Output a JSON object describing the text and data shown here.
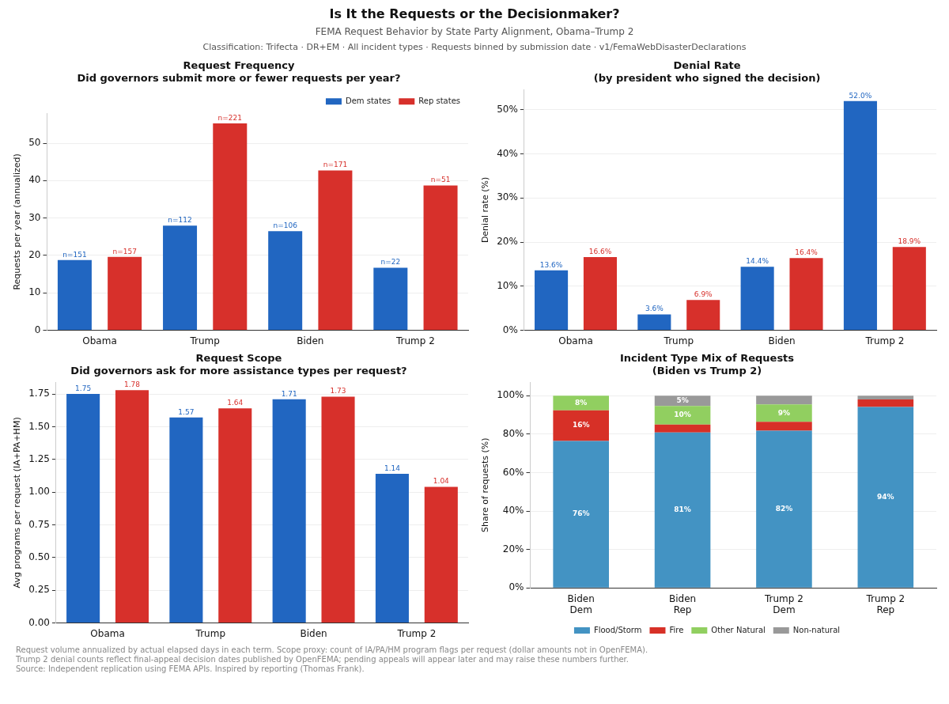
{
  "chart_data": [
    {
      "type": "other",
      "title": "Is It the Requests or the Decisionmaker?",
      "subtitle": "FEMA Request Behavior by State Party Alignment, Obama–Trump 2",
      "annotations": [
        "Classification: Trifecta · DR+EM · All incident types · Requests binned by submission date · v1/FemaWebDisasterDeclarations"
      ]
    },
    {
      "type": "bar",
      "title": "Request Frequency\nDid governors submit more or fewer requests per year?",
      "annotations": [
        "n=151",
        "n=112",
        "n=106",
        "n=22",
        "n=157",
        "n=221",
        "n=171",
        "n=51"
      ],
      "ylabel": "Requests per year (annualized)",
      "categories": [
        "Obama",
        "Trump",
        "Biden",
        "Trump 2"
      ],
      "series": [
        {
          "name": "Dem states",
          "color": "#2166c1",
          "values": [
            18.8,
            28.0,
            26.5,
            16.7
          ]
        },
        {
          "name": "Rep states",
          "color": "#d7302b",
          "values": [
            19.6,
            55.3,
            42.7,
            38.7
          ]
        }
      ],
      "ylim": [
        0,
        58
      ],
      "yticks": [
        0,
        10,
        20,
        30,
        40,
        50
      ],
      "grid": "y",
      "legend": "top right"
    },
    {
      "type": "bar",
      "title": "Denial Rate\n(by president who signed the decision)",
      "ylabel": "Denial rate (%)",
      "categories": [
        "Obama",
        "Trump",
        "Biden",
        "Trump 2"
      ],
      "series": [
        {
          "color": "#2166c1",
          "values": [
            13.6,
            3.6,
            14.4,
            52.0
          ],
          "value_labels": [
            "13.6%",
            "3.6%",
            "14.4%",
            "52.0%"
          ]
        },
        {
          "color": "#d7302b",
          "values": [
            16.6,
            6.9,
            16.4,
            18.9
          ],
          "value_labels": [
            "16.6%",
            "6.9%",
            "16.4%",
            "18.9%"
          ]
        }
      ],
      "ylim": [
        0,
        54.6
      ],
      "yticks": [
        {
          "value": 0,
          "label": "0%"
        },
        {
          "value": 10,
          "label": "10%"
        },
        {
          "value": 20,
          "label": "20%"
        },
        {
          "value": 30,
          "label": "30%"
        },
        {
          "value": 40,
          "label": "40%"
        },
        {
          "value": 50,
          "label": "50%"
        }
      ],
      "grid": "y"
    },
    {
      "type": "bar",
      "title": "Request Scope\nDid governors ask for more assistance types per request?",
      "ylabel": "Avg programs per request (IA+PA+HM)",
      "categories": [
        "Obama",
        "Trump",
        "Biden",
        "Trump 2"
      ],
      "series": [
        {
          "color": "#2166c1",
          "values": [
            1.75,
            1.57,
            1.71,
            1.14
          ],
          "value_labels": [
            "1.75",
            "1.57",
            "1.71",
            "1.14"
          ]
        },
        {
          "color": "#d7302b",
          "values": [
            1.78,
            1.64,
            1.73,
            1.04
          ],
          "value_labels": [
            "1.78",
            "1.64",
            "1.73",
            "1.04"
          ]
        }
      ],
      "ylim": [
        0,
        1.84
      ],
      "yticks": [
        {
          "value": 0,
          "label": "0.00"
        },
        {
          "value": 0.25,
          "label": "0.25"
        },
        {
          "value": 0.5,
          "label": "0.50"
        },
        {
          "value": 0.75,
          "label": "0.75"
        },
        {
          "value": 1,
          "label": "1.00"
        },
        {
          "value": 1.25,
          "label": "1.25"
        },
        {
          "value": 1.5,
          "label": "1.50"
        },
        {
          "value": 1.75,
          "label": "1.75"
        }
      ],
      "grid": "y"
    },
    {
      "type": "bar",
      "title": "Incident Type Mix of Requests\n(Biden vs Trump 2)",
      "ylabel": "Share of requests (%)",
      "categories": [
        "Biden\nDem",
        "Biden\nRep",
        "Trump 2\nDem",
        "Trump 2\nRep"
      ],
      "stacked": true,
      "series": [
        {
          "name": "Flood/Storm",
          "color": "#4393c3",
          "values": [
            76.4,
            80.8,
            81.8,
            94.1
          ],
          "value_labels": [
            "76%",
            "81%",
            "82%",
            "94%"
          ]
        },
        {
          "name": "Fire",
          "color": "#d73027",
          "values": [
            16.0,
            4.2,
            4.6,
            3.9
          ],
          "value_labels": [
            "16%",
            null,
            null,
            null
          ]
        },
        {
          "name": "Other Natural",
          "color": "#91cf60",
          "values": [
            7.6,
            9.6,
            9.1,
            0
          ],
          "value_labels": [
            "8%",
            "10%",
            "9%",
            null
          ]
        },
        {
          "name": "Non-natural",
          "color": "#999999",
          "values": [
            0,
            5.4,
            4.5,
            2.0
          ],
          "value_labels": [
            null,
            "5%",
            null,
            null
          ]
        }
      ],
      "ylim": [
        0,
        107
      ],
      "yticks": [
        {
          "value": 0,
          "label": "0%"
        },
        {
          "value": 20,
          "label": "20%"
        },
        {
          "value": 40,
          "label": "40%"
        },
        {
          "value": 60,
          "label": "60%"
        },
        {
          "value": 80,
          "label": "80%"
        },
        {
          "value": 100,
          "label": "100%"
        }
      ],
      "grid": "y",
      "legend": "bottom"
    },
    {
      "type": "other",
      "annotations": [
        "Request volume annualized by actual elapsed days in each term. Scope proxy: count of IA/PA/HM program flags per request (dollar amounts not in OpenFEMA).",
        "Trump 2 denial counts reflect final-appeal decision dates published by OpenFEMA; pending appeals will appear later and may raise these numbers further.",
        "Source: Independent replication using FEMA APIs. Inspired by reporting (Thomas Frank)."
      ]
    }
  ]
}
